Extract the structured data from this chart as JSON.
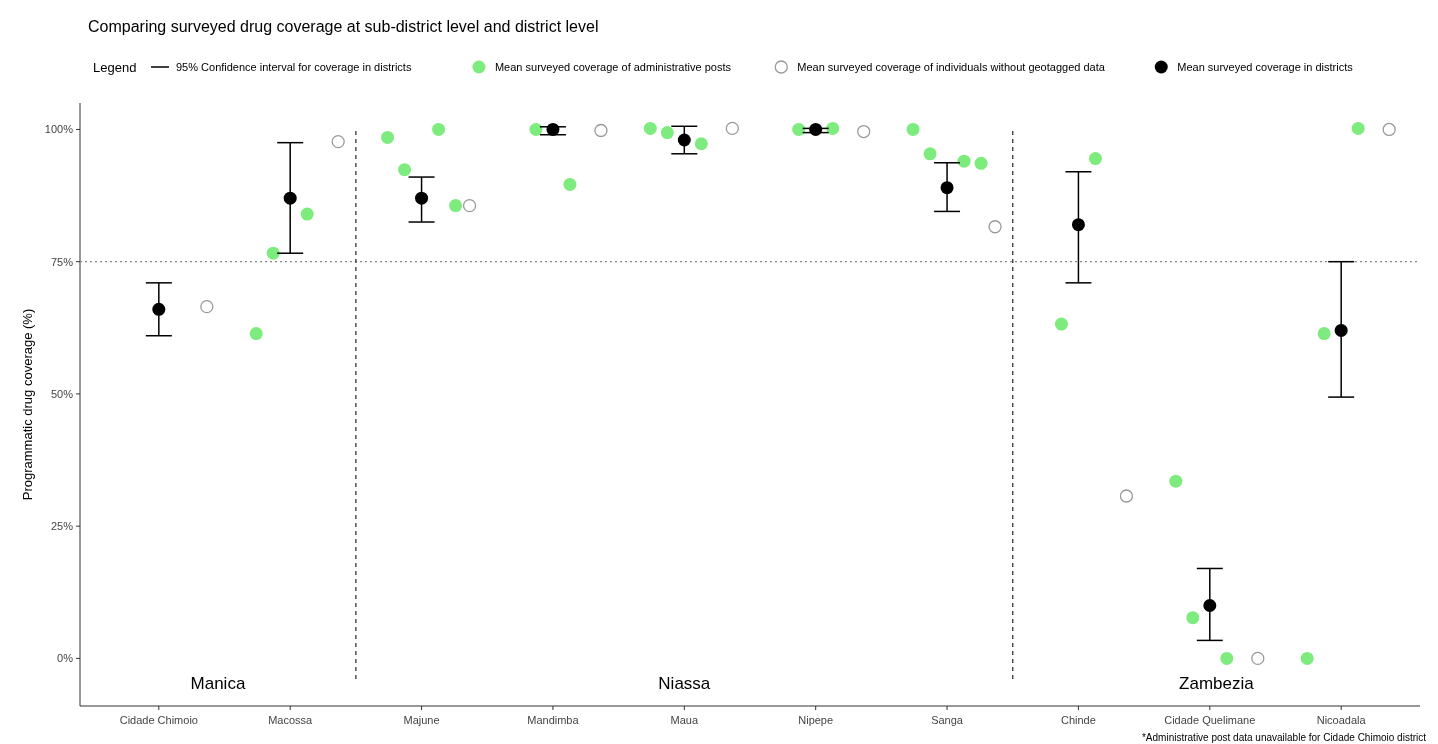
{
  "chart_data": {
    "type": "scatter",
    "title": "Comparing surveyed drug coverage at sub-district level and district level",
    "ylabel": "Programmatic drug coverage (%)",
    "categories": [
      "Cidade Chimoio",
      "Macossa",
      "Majune",
      "Mandimba",
      "Maua",
      "Nipepe",
      "Sanga",
      "Chinde",
      "Cidade Quelimane",
      "Nicoadala"
    ],
    "ylim": [
      -9,
      105
    ],
    "yticks": [
      {
        "value": 0,
        "label": "0%"
      },
      {
        "value": 25,
        "label": "25%"
      },
      {
        "value": 50,
        "label": "50%"
      },
      {
        "value": 75,
        "label": "75%"
      },
      {
        "value": 100,
        "label": "100%"
      }
    ],
    "legend": "top",
    "legend_title": "Legend",
    "series": [
      {
        "name": "Mean surveyed coverage of administrative posts",
        "marker": "circle",
        "color": "#66e866",
        "x": [
          "Macossa",
          "Macossa",
          "Macossa",
          "Majune",
          "Majune",
          "Majune",
          "Majune",
          "Mandimba",
          "Mandimba",
          "Maua",
          "Maua",
          "Maua",
          "Nipepe",
          "Nipepe",
          "Sanga",
          "Sanga",
          "Sanga",
          "Sanga",
          "Chinde",
          "Chinde",
          "Cidade Quelimane",
          "Cidade Quelimane",
          "Cidade Quelimane",
          "Nicoadala",
          "Nicoadala",
          "Nicoadala"
        ],
        "values": [
          76.6,
          84,
          61.4,
          92.4,
          100,
          98.5,
          85.6,
          100,
          89.6,
          99.4,
          97.3,
          100.2,
          100,
          100.2,
          95.4,
          94,
          100,
          93.6,
          63.2,
          94.5,
          7.7,
          0,
          33.5,
          61.4,
          100.2,
          0
        ]
      },
      {
        "name": "Mean surveyed coverage of individuals without geotagged data",
        "marker": "circle-open",
        "color": "#999999",
        "x": [
          "Cidade Chimoio",
          "Macossa",
          "Majune",
          "Mandimba",
          "Maua",
          "Nipepe",
          "Sanga",
          "Chinde",
          "Cidade Quelimane",
          "Nicoadala"
        ],
        "values": [
          66.5,
          97.7,
          85.6,
          99.8,
          100.2,
          99.6,
          81.6,
          30.7,
          0,
          100
        ]
      },
      {
        "name": "Mean surveyed coverage in districts",
        "marker": "circle",
        "color": "#000000",
        "x": [
          "Cidade Chimoio",
          "Macossa",
          "Majune",
          "Mandimba",
          "Maua",
          "Nipepe",
          "Sanga",
          "Chinde",
          "Cidade Quelimane",
          "Nicoadala"
        ],
        "values": [
          66,
          87,
          87,
          100,
          98,
          100,
          89,
          82,
          10,
          62
        ],
        "errors": [
          [
            61,
            71
          ],
          [
            76.6,
            97.5
          ],
          [
            82.5,
            91
          ],
          [
            99,
            100.5
          ],
          [
            95.4,
            100.6
          ],
          [
            99.4,
            100.2
          ],
          [
            84.5,
            93.7
          ],
          [
            71,
            92
          ],
          [
            3.4,
            17
          ],
          [
            49.4,
            75
          ]
        ]
      }
    ],
    "ref_lines": [
      {
        "axis": "y",
        "value": 75,
        "color": "#888888",
        "line_style": "dotted"
      }
    ],
    "annotations": [
      "Manica",
      "Niassa",
      "Zambezia",
      "*Administrative post data unavailable for Cidade Chimoio district",
      "95% Confidence interval for coverage in districts"
    ]
  }
}
